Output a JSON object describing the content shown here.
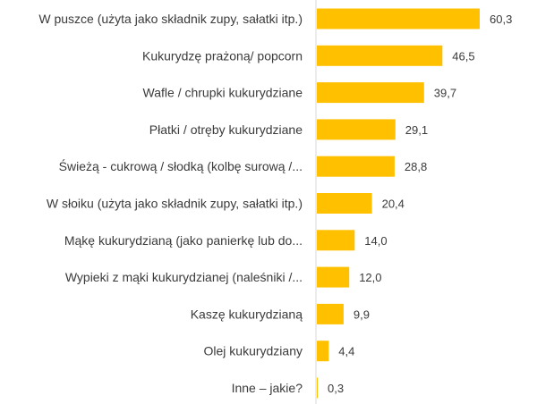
{
  "chart_data": {
    "type": "bar",
    "orientation": "horizontal",
    "categories": [
      "W puszce (użyta jako składnik zupy, sałatki itp.)",
      "Kukurydzę prażoną/ popcorn",
      "Wafle / chrupki kukurydziane",
      "Płatki / otręby kukurydziane",
      "Świeżą - cukrową / słodką (kolbę surową /...",
      "W słoiku (użyta jako składnik zupy, sałatki itp.)",
      "Mąkę kukurydzianą (jako panierkę lub do...",
      "Wypieki z mąki kukurydzianej (naleśniki /...",
      "Kaszę kukurydzianą",
      "Olej kukurydziany",
      "Inne – jakie?"
    ],
    "values": [
      60.3,
      46.5,
      39.7,
      29.1,
      28.8,
      20.4,
      14.0,
      12.0,
      9.9,
      4.4,
      0.3
    ],
    "value_labels": [
      "60,3",
      "46,5",
      "39,7",
      "29,1",
      "28,8",
      "20,4",
      "14,0",
      "12,0",
      "9,9",
      "4,4",
      "0,3"
    ],
    "bar_color": "#FFC000",
    "xlim": [
      0,
      60.3
    ],
    "grid": false,
    "legend": "none"
  }
}
